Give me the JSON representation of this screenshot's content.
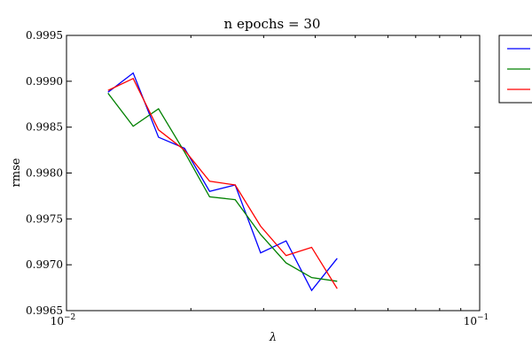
{
  "chart_data": {
    "type": "line",
    "title": "n epochs = 30",
    "xlabel": "λ",
    "ylabel": "rmse",
    "xscale": "log",
    "xlim": [
      0.01,
      0.1
    ],
    "ylim": [
      0.9965,
      0.9995
    ],
    "x_ticks": [
      {
        "value": 0.01,
        "base": "10",
        "exp": "−2"
      },
      {
        "value": 0.1,
        "base": "10",
        "exp": "−1"
      }
    ],
    "y_ticks": [
      {
        "value": 0.9965,
        "label": "0.9965"
      },
      {
        "value": 0.997,
        "label": "0.9970"
      },
      {
        "value": 0.9975,
        "label": "0.9975"
      },
      {
        "value": 0.998,
        "label": "0.9980"
      },
      {
        "value": 0.9985,
        "label": "0.9985"
      },
      {
        "value": 0.999,
        "label": "0.9990"
      },
      {
        "value": 0.9995,
        "label": "0.9995"
      }
    ],
    "x": [
      0.0126,
      0.0145,
      0.0167,
      0.0193,
      0.0222,
      0.0256,
      0.0295,
      0.034,
      0.0392,
      0.0452
    ],
    "series": [
      {
        "color": "#0000ff",
        "values": [
          0.99888,
          0.99909,
          0.99839,
          0.99827,
          0.9978,
          0.99787,
          0.99713,
          0.99726,
          0.99672,
          0.99707
        ]
      },
      {
        "color": "#008000",
        "values": [
          0.99887,
          0.99851,
          0.9987,
          0.99823,
          0.99774,
          0.99771,
          0.99733,
          0.99702,
          0.99686,
          0.99682
        ]
      },
      {
        "color": "#ff0000",
        "values": [
          0.9989,
          0.99903,
          0.99847,
          0.99825,
          0.99791,
          0.99787,
          0.99742,
          0.9971,
          0.99719,
          0.99674
        ]
      }
    ],
    "grid": false,
    "legend": {
      "placement": "outside-top-right"
    }
  }
}
